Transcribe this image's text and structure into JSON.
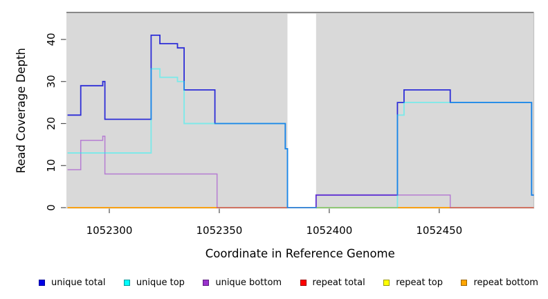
{
  "chart_data": {
    "type": "line",
    "subtype": "step-coverage-plot",
    "title": "",
    "xlabel": "Coordinate in Reference Genome",
    "ylabel": "Read Coverage Depth",
    "xlim": [
      1052280.5,
      1052493
    ],
    "ylim": [
      0,
      46.5
    ],
    "x_ticks": [
      1052300,
      1052350,
      1052400,
      1052450
    ],
    "y_ticks": [
      0,
      10,
      20,
      30,
      40
    ],
    "grid": false,
    "panel_background": "#D9D9D9",
    "panel_top_border_color": "#7A7A7A",
    "panel_right_border_color": "#C2C2C2",
    "masked_region": {
      "x_start": 1052381,
      "x_end": 1052394,
      "fill": "#FFFFFF"
    },
    "x_end": 1052493,
    "series": [
      {
        "name": "repeat total",
        "color": "#EE0000",
        "opacity": 0.8,
        "stroke_width": 1.5,
        "steps": [
          [
            1052281,
            0
          ]
        ]
      },
      {
        "name": "repeat top",
        "color": "#EEEE00",
        "opacity": 0.8,
        "stroke_width": 1.5,
        "steps": [
          [
            1052281,
            0
          ]
        ]
      },
      {
        "name": "repeat bottom",
        "color": "#FF9900",
        "opacity": 0.9,
        "stroke_width": 1.5,
        "steps": [
          [
            1052281,
            0
          ]
        ]
      },
      {
        "name": "unique total",
        "color": "#1A1AD6",
        "opacity": 0.9,
        "stroke_width": 1.8,
        "steps": [
          [
            1052281,
            22
          ],
          [
            1052287,
            29
          ],
          [
            1052297,
            30
          ],
          [
            1052298,
            21
          ],
          [
            1052319,
            41
          ],
          [
            1052323,
            39
          ],
          [
            1052331,
            38
          ],
          [
            1052334,
            28
          ],
          [
            1052348,
            20
          ],
          [
            1052380,
            14
          ],
          [
            1052381,
            0
          ],
          [
            1052394,
            3
          ],
          [
            1052431,
            25
          ],
          [
            1052434,
            28
          ],
          [
            1052455,
            25
          ],
          [
            1052492,
            3
          ]
        ]
      },
      {
        "name": "unique bottom",
        "color": "#9932CC",
        "opacity": 0.55,
        "stroke_width": 1.5,
        "steps": [
          [
            1052281,
            9
          ],
          [
            1052287,
            16
          ],
          [
            1052297,
            17
          ],
          [
            1052298,
            8
          ],
          [
            1052349,
            0
          ],
          [
            1052394,
            3
          ],
          [
            1052455,
            0
          ]
        ]
      },
      {
        "name": "unique top",
        "color": "#00FFFF",
        "opacity": 0.42,
        "stroke_width": 1.9,
        "steps": [
          [
            1052281,
            13
          ],
          [
            1052319,
            33
          ],
          [
            1052323,
            31
          ],
          [
            1052331,
            30
          ],
          [
            1052334,
            20
          ],
          [
            1052380,
            14
          ],
          [
            1052381,
            0
          ],
          [
            1052431,
            22
          ],
          [
            1052434,
            25
          ],
          [
            1052492,
            3
          ]
        ]
      }
    ]
  },
  "legend": {
    "items": [
      {
        "label": "unique total",
        "swatch_color": "#0000E6",
        "swatch_border": "#000099"
      },
      {
        "label": "unique top",
        "swatch_color": "#00FFFF",
        "swatch_border": "#009999"
      },
      {
        "label": "unique bottom",
        "swatch_color": "#9932CC",
        "swatch_border": "#5E1B80"
      },
      {
        "label": "repeat total",
        "swatch_color": "#FF0000",
        "swatch_border": "#990000"
      },
      {
        "label": "repeat top",
        "swatch_color": "#FFFF00",
        "swatch_border": "#999900"
      },
      {
        "label": "repeat bottom",
        "swatch_color": "#FFA500",
        "swatch_border": "#996300"
      }
    ]
  }
}
